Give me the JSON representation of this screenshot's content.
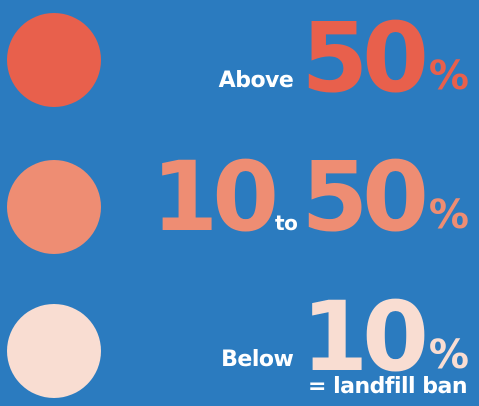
{
  "colors": {
    "background": "#2b7bbf",
    "above_50": "#e8604c",
    "between_10_50": "#ee8d73",
    "below_10": "#f9ddd2",
    "text": "#ffffff"
  },
  "legend": {
    "above": {
      "prefix": "Above",
      "value": "50",
      "unit": "%"
    },
    "between": {
      "low": "10",
      "connector": "to",
      "high": "50",
      "unit": "%"
    },
    "below": {
      "prefix": "Below",
      "value": "10",
      "unit": "%",
      "note": "= landfill ban"
    }
  }
}
